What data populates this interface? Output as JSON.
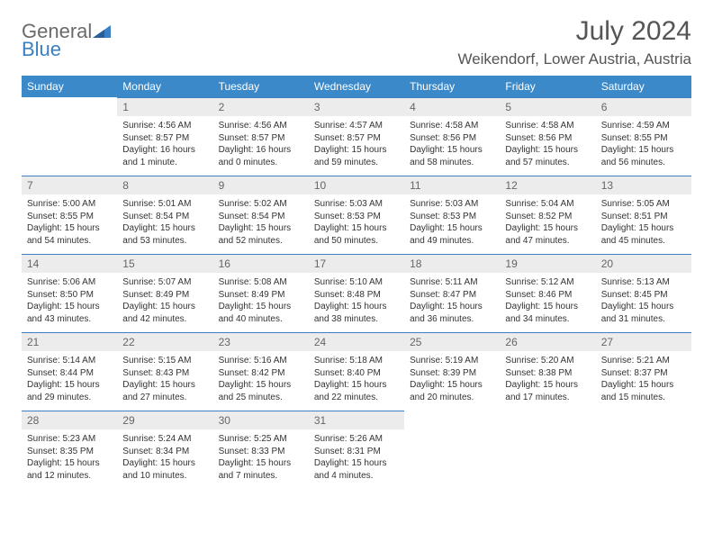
{
  "colors": {
    "header_bg": "#3b89c9",
    "header_text": "#ffffff",
    "daynum_bg": "#ececec",
    "daynum_border": "#3b7fc4",
    "body_text": "#333333",
    "title_text": "#555555",
    "logo_gray": "#6a6a6a",
    "logo_blue": "#3b7fc4",
    "background": "#ffffff"
  },
  "logo": {
    "part1": "General",
    "part2": "Blue"
  },
  "title": "July 2024",
  "location": "Weikendorf, Lower Austria, Austria",
  "weekdays": [
    "Sunday",
    "Monday",
    "Tuesday",
    "Wednesday",
    "Thursday",
    "Friday",
    "Saturday"
  ],
  "weeks": [
    [
      null,
      {
        "n": "1",
        "sunrise": "4:56 AM",
        "sunset": "8:57 PM",
        "daylight": "16 hours and 1 minute."
      },
      {
        "n": "2",
        "sunrise": "4:56 AM",
        "sunset": "8:57 PM",
        "daylight": "16 hours and 0 minutes."
      },
      {
        "n": "3",
        "sunrise": "4:57 AM",
        "sunset": "8:57 PM",
        "daylight": "15 hours and 59 minutes."
      },
      {
        "n": "4",
        "sunrise": "4:58 AM",
        "sunset": "8:56 PM",
        "daylight": "15 hours and 58 minutes."
      },
      {
        "n": "5",
        "sunrise": "4:58 AM",
        "sunset": "8:56 PM",
        "daylight": "15 hours and 57 minutes."
      },
      {
        "n": "6",
        "sunrise": "4:59 AM",
        "sunset": "8:55 PM",
        "daylight": "15 hours and 56 minutes."
      }
    ],
    [
      {
        "n": "7",
        "sunrise": "5:00 AM",
        "sunset": "8:55 PM",
        "daylight": "15 hours and 54 minutes."
      },
      {
        "n": "8",
        "sunrise": "5:01 AM",
        "sunset": "8:54 PM",
        "daylight": "15 hours and 53 minutes."
      },
      {
        "n": "9",
        "sunrise": "5:02 AM",
        "sunset": "8:54 PM",
        "daylight": "15 hours and 52 minutes."
      },
      {
        "n": "10",
        "sunrise": "5:03 AM",
        "sunset": "8:53 PM",
        "daylight": "15 hours and 50 minutes."
      },
      {
        "n": "11",
        "sunrise": "5:03 AM",
        "sunset": "8:53 PM",
        "daylight": "15 hours and 49 minutes."
      },
      {
        "n": "12",
        "sunrise": "5:04 AM",
        "sunset": "8:52 PM",
        "daylight": "15 hours and 47 minutes."
      },
      {
        "n": "13",
        "sunrise": "5:05 AM",
        "sunset": "8:51 PM",
        "daylight": "15 hours and 45 minutes."
      }
    ],
    [
      {
        "n": "14",
        "sunrise": "5:06 AM",
        "sunset": "8:50 PM",
        "daylight": "15 hours and 43 minutes."
      },
      {
        "n": "15",
        "sunrise": "5:07 AM",
        "sunset": "8:49 PM",
        "daylight": "15 hours and 42 minutes."
      },
      {
        "n": "16",
        "sunrise": "5:08 AM",
        "sunset": "8:49 PM",
        "daylight": "15 hours and 40 minutes."
      },
      {
        "n": "17",
        "sunrise": "5:10 AM",
        "sunset": "8:48 PM",
        "daylight": "15 hours and 38 minutes."
      },
      {
        "n": "18",
        "sunrise": "5:11 AM",
        "sunset": "8:47 PM",
        "daylight": "15 hours and 36 minutes."
      },
      {
        "n": "19",
        "sunrise": "5:12 AM",
        "sunset": "8:46 PM",
        "daylight": "15 hours and 34 minutes."
      },
      {
        "n": "20",
        "sunrise": "5:13 AM",
        "sunset": "8:45 PM",
        "daylight": "15 hours and 31 minutes."
      }
    ],
    [
      {
        "n": "21",
        "sunrise": "5:14 AM",
        "sunset": "8:44 PM",
        "daylight": "15 hours and 29 minutes."
      },
      {
        "n": "22",
        "sunrise": "5:15 AM",
        "sunset": "8:43 PM",
        "daylight": "15 hours and 27 minutes."
      },
      {
        "n": "23",
        "sunrise": "5:16 AM",
        "sunset": "8:42 PM",
        "daylight": "15 hours and 25 minutes."
      },
      {
        "n": "24",
        "sunrise": "5:18 AM",
        "sunset": "8:40 PM",
        "daylight": "15 hours and 22 minutes."
      },
      {
        "n": "25",
        "sunrise": "5:19 AM",
        "sunset": "8:39 PM",
        "daylight": "15 hours and 20 minutes."
      },
      {
        "n": "26",
        "sunrise": "5:20 AM",
        "sunset": "8:38 PM",
        "daylight": "15 hours and 17 minutes."
      },
      {
        "n": "27",
        "sunrise": "5:21 AM",
        "sunset": "8:37 PM",
        "daylight": "15 hours and 15 minutes."
      }
    ],
    [
      {
        "n": "28",
        "sunrise": "5:23 AM",
        "sunset": "8:35 PM",
        "daylight": "15 hours and 12 minutes."
      },
      {
        "n": "29",
        "sunrise": "5:24 AM",
        "sunset": "8:34 PM",
        "daylight": "15 hours and 10 minutes."
      },
      {
        "n": "30",
        "sunrise": "5:25 AM",
        "sunset": "8:33 PM",
        "daylight": "15 hours and 7 minutes."
      },
      {
        "n": "31",
        "sunrise": "5:26 AM",
        "sunset": "8:31 PM",
        "daylight": "15 hours and 4 minutes."
      },
      null,
      null,
      null
    ]
  ],
  "labels": {
    "sunrise": "Sunrise: ",
    "sunset": "Sunset: ",
    "daylight": "Daylight: "
  }
}
